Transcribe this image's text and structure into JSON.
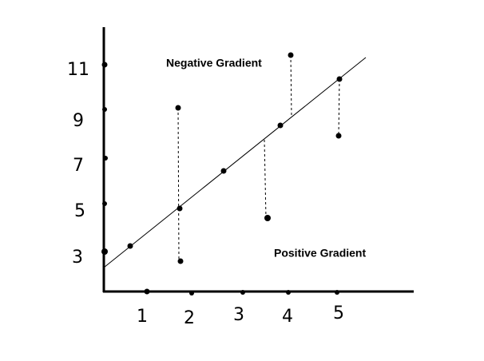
{
  "diagram": {
    "y_labels": [
      11,
      9,
      7,
      5,
      3
    ],
    "x_labels": [
      1,
      2,
      3,
      4,
      5
    ],
    "annotations": {
      "top": "Negative Gradient",
      "bottom": "Positive Gradient"
    }
  }
}
